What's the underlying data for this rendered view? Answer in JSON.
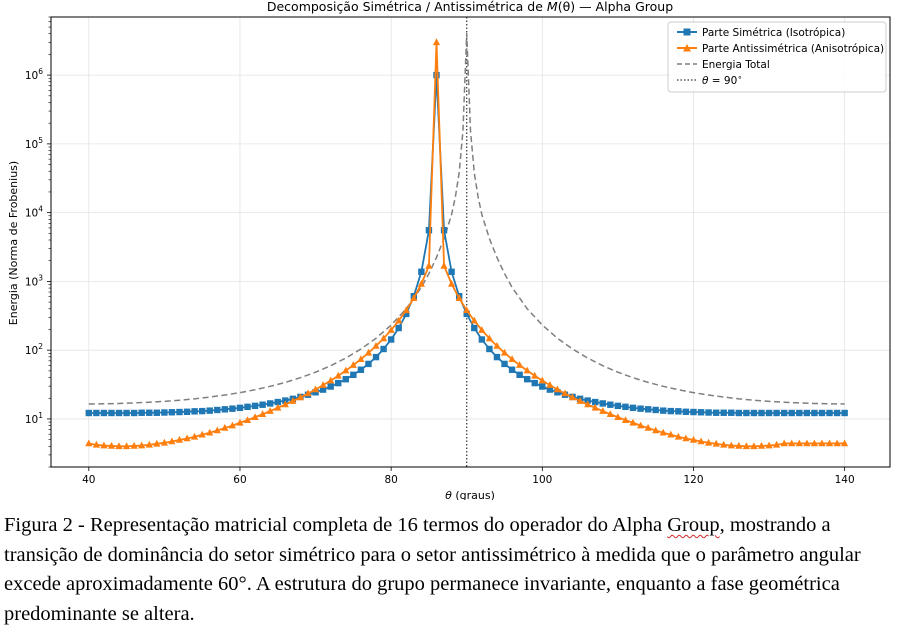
{
  "chart_data": {
    "type": "line",
    "title_prefix": "Decomposição Simétrica / Antissimétrica de ",
    "title_math": "M",
    "title_math_arg": "(θ)",
    "title_suffix": " — Alpha Group",
    "xlabel_math": "θ",
    "xlabel_rest": " (graus)",
    "ylabel": "Energia (Norma de Frobenius)",
    "xlim": [
      35,
      146
    ],
    "ylim": [
      2,
      7000000
    ],
    "y_scale": "log",
    "x_ticks": [
      "40",
      "60",
      "80",
      "100",
      "120",
      "140"
    ],
    "y_ticks": [
      {
        "base": "10",
        "exp": "1"
      },
      {
        "base": "10",
        "exp": "2"
      },
      {
        "base": "10",
        "exp": "3"
      },
      {
        "base": "10",
        "exp": "4"
      },
      {
        "base": "10",
        "exp": "5"
      },
      {
        "base": "10",
        "exp": "6"
      }
    ],
    "grid": true,
    "legend_position": "top-right",
    "vline_x": 90,
    "series": [
      {
        "name": "Parte Simétrica (Isotrópica)",
        "color": "#1f77b4",
        "marker": "square",
        "x": [
          40,
          41,
          42,
          43,
          44,
          45,
          46,
          47,
          48,
          49,
          50,
          51,
          52,
          53,
          54,
          55,
          56,
          57,
          58,
          59,
          60,
          61,
          62,
          63,
          64,
          65,
          66,
          67,
          68,
          69,
          70,
          71,
          72,
          73,
          74,
          75,
          76,
          77,
          78,
          79,
          80,
          81,
          82,
          83,
          84,
          85,
          86,
          87,
          88,
          89,
          90,
          91,
          92,
          93,
          94,
          95,
          96,
          97,
          98,
          99,
          100,
          101,
          102,
          103,
          104,
          105,
          106,
          107,
          108,
          109,
          110,
          111,
          112,
          113,
          114,
          115,
          116,
          117,
          118,
          119,
          120,
          121,
          122,
          123,
          124,
          125,
          126,
          127,
          128,
          129,
          130,
          131,
          132,
          133,
          134,
          135,
          136,
          137,
          138,
          139,
          140
        ],
        "y": [
          12.2,
          12.2,
          12.2,
          12.2,
          12.2,
          12.2,
          12.2,
          12.3,
          12.3,
          12.3,
          12.4,
          12.5,
          12.6,
          12.7,
          12.9,
          13.0,
          13.2,
          13.5,
          13.8,
          14.1,
          14.5,
          15.0,
          15.5,
          16.1,
          16.8,
          17.6,
          18.5,
          19.6,
          20.9,
          22.5,
          24.4,
          26.7,
          29.6,
          33.2,
          37.8,
          43.8,
          51.9,
          63.1,
          79.3,
          104,
          143,
          210,
          337,
          610,
          1380,
          5550,
          1000000,
          5550,
          1380,
          610,
          337,
          210,
          143,
          104,
          79.3,
          63.1,
          51.9,
          43.8,
          37.8,
          33.2,
          29.6,
          26.7,
          24.4,
          22.5,
          20.9,
          19.6,
          18.5,
          17.6,
          16.8,
          16.1,
          15.5,
          15.0,
          14.5,
          14.1,
          13.8,
          13.5,
          13.2,
          13.0,
          12.9,
          12.7,
          12.6,
          12.5,
          12.4,
          12.3,
          12.3,
          12.3,
          12.2,
          12.2,
          12.2,
          12.2,
          12.2,
          12.2,
          12.2,
          12.2,
          12.2,
          12.2,
          12.2,
          12.2,
          12.2,
          12.2,
          12.2
        ]
      },
      {
        "name": "Parte Antissimétrica (Anisotrópica)",
        "color": "#ff7f0e",
        "marker": "triangle",
        "x": [
          40,
          41,
          42,
          43,
          44,
          45,
          46,
          47,
          48,
          49,
          50,
          51,
          52,
          53,
          54,
          55,
          56,
          57,
          58,
          59,
          60,
          61,
          62,
          63,
          64,
          65,
          66,
          67,
          68,
          69,
          70,
          71,
          72,
          73,
          74,
          75,
          76,
          77,
          78,
          79,
          80,
          81,
          82,
          83,
          84,
          85,
          86,
          87,
          88,
          89,
          90,
          91,
          92,
          93,
          94,
          95,
          96,
          97,
          98,
          99,
          100,
          101,
          102,
          103,
          104,
          105,
          106,
          107,
          108,
          109,
          110,
          111,
          112,
          113,
          114,
          115,
          116,
          117,
          118,
          119,
          120,
          121,
          122,
          123,
          124,
          125,
          126,
          127,
          128,
          129,
          130,
          131,
          132,
          133,
          134,
          135,
          136,
          137,
          138,
          139,
          140
        ],
        "y": [
          4.4,
          4.2,
          4.1,
          4.05,
          4.0,
          4.0,
          4.05,
          4.1,
          4.2,
          4.35,
          4.5,
          4.7,
          4.95,
          5.2,
          5.5,
          5.9,
          6.3,
          6.8,
          7.4,
          8.0,
          8.8,
          9.6,
          10.6,
          11.7,
          13.0,
          14.5,
          16.2,
          18.2,
          20.6,
          23.4,
          26.8,
          31.0,
          36.1,
          42.4,
          50.4,
          60.6,
          73.9,
          91.5,
          115,
          148,
          196,
          268,
          380,
          570,
          920,
          1680,
          3000000,
          1680,
          920,
          570,
          380,
          268,
          196,
          148,
          115,
          91.5,
          73.9,
          60.6,
          50.4,
          42.4,
          36.1,
          31.0,
          26.8,
          23.4,
          20.6,
          18.2,
          16.2,
          14.5,
          13.0,
          11.7,
          10.6,
          9.6,
          8.8,
          8.0,
          7.4,
          6.8,
          6.3,
          5.9,
          5.5,
          5.2,
          4.95,
          4.7,
          4.5,
          4.35,
          4.2,
          4.1,
          4.05,
          4.0,
          4.0,
          4.05,
          4.1,
          4.2,
          4.4,
          4.4,
          4.4,
          4.4,
          4.4,
          4.4,
          4.4,
          4.4,
          4.4
        ]
      },
      {
        "name": "Energia Total",
        "color": "#7f7f7f",
        "marker": "none",
        "x": [
          40,
          42,
          44,
          46,
          48,
          50,
          52,
          54,
          56,
          58,
          60,
          62,
          64,
          66,
          68,
          70,
          72,
          74,
          76,
          78,
          80,
          82,
          84,
          85,
          86,
          87,
          88,
          88.5,
          89,
          89.5,
          90,
          90.5,
          91,
          91.5,
          92,
          93,
          94,
          95,
          96,
          98,
          100,
          102,
          104,
          106,
          108,
          110,
          112,
          114,
          116,
          118,
          120,
          122,
          124,
          126,
          128,
          130,
          132,
          134,
          136,
          138,
          140
        ],
        "y": [
          16.5,
          16.6,
          16.8,
          17.1,
          17.5,
          18.0,
          18.7,
          19.6,
          20.8,
          22.3,
          24.1,
          26.6,
          29.8,
          34.0,
          39.8,
          47.8,
          59.4,
          76.8,
          104,
          149,
          232,
          400,
          820,
          1300,
          2230,
          4200,
          9400,
          17000,
          38000,
          155000,
          4000000,
          155000,
          38000,
          17000,
          9400,
          4200,
          2230,
          1300,
          820,
          400,
          232,
          149,
          104,
          76.8,
          59.4,
          47.8,
          39.8,
          34.0,
          29.8,
          26.6,
          24.1,
          22.3,
          20.8,
          19.6,
          18.7,
          18.0,
          17.5,
          17.1,
          16.8,
          16.6,
          16.5
        ]
      }
    ],
    "vline_label_math": "θ",
    "vline_label_rest": " = 90",
    "vline_label_sup": "∘"
  },
  "caption": {
    "part1": "Figura 2 - Representação matricial completa de 16 termos do operador do Alpha ",
    "flagged_word": "Group",
    "part2": ", mostrando a transição de dominância do setor simétrico para o setor antissimétrico à medida que o parâmetro angular excede aproximadamente 60°. A estrutura do grupo permanece invariante, enquanto a fase geométrica predominante se altera."
  }
}
